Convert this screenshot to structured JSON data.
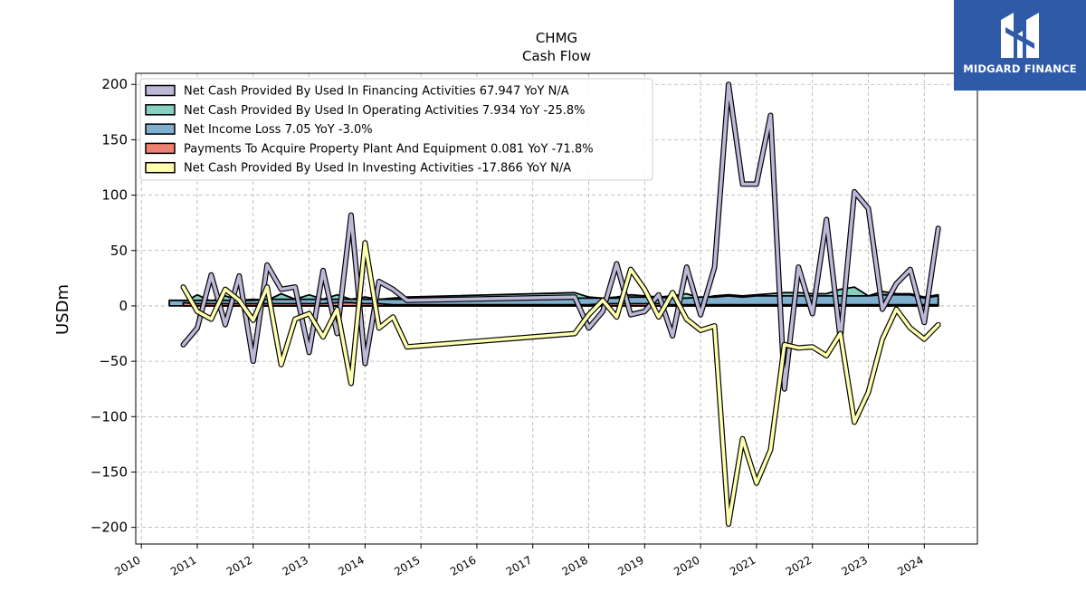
{
  "brand": {
    "name": "MIDGARD FINANCE",
    "bg_color": "#2f5aa8"
  },
  "chart_data": {
    "type": "area",
    "title": "CHMG",
    "subtitle": "Cash Flow",
    "xlabel": "",
    "ylabel": "USDm",
    "xlim": [
      2009.9,
      2024.95
    ],
    "ylim": [
      -215,
      210
    ],
    "yticks": [
      200,
      150,
      100,
      50,
      0,
      -50,
      -100,
      -150,
      -200
    ],
    "ytick_labels": [
      "200",
      "150",
      "100",
      "50",
      "0",
      "−50",
      "−100",
      "−150",
      "−200"
    ],
    "xticks": [
      2010,
      2011,
      2012,
      2013,
      2014,
      2015,
      2016,
      2017,
      2018,
      2019,
      2020,
      2021,
      2022,
      2023,
      2024
    ],
    "xtick_labels": [
      "2010",
      "2011",
      "2012",
      "2013",
      "2014",
      "2015",
      "2016",
      "2017",
      "2018",
      "2019",
      "2020",
      "2021",
      "2022",
      "2023",
      "2024"
    ],
    "grid": true,
    "legend_position": "top-left",
    "series": [
      {
        "name": "Net Cash Provided By Used In Financing Activities",
        "legend": "Net Cash Provided By Used In Financing Activities  67.947 YoY N/A",
        "style": "line",
        "color": "#bcb8d8",
        "x": [
          2010.75,
          2011.0,
          2011.25,
          2011.5,
          2011.75,
          2012.0,
          2012.25,
          2012.5,
          2012.75,
          2013.0,
          2013.25,
          2013.5,
          2013.75,
          2014.0,
          2014.25,
          2014.5,
          2014.75,
          2017.75,
          2018.0,
          2018.25,
          2018.5,
          2018.75,
          2019.0,
          2019.25,
          2019.5,
          2019.75,
          2020.0,
          2020.25,
          2020.5,
          2020.75,
          2021.0,
          2021.25,
          2021.5,
          2021.75,
          2022.0,
          2022.25,
          2022.5,
          2022.75,
          2023.0,
          2023.25,
          2023.5,
          2023.75,
          2024.0,
          2024.25
        ],
        "y": [
          -35,
          -20,
          28,
          -17,
          27,
          -50,
          37,
          15,
          17,
          -42,
          32,
          -25,
          82,
          -52,
          22,
          15,
          5,
          8,
          -20,
          -5,
          38,
          -8,
          -5,
          10,
          -27,
          35,
          -8,
          35,
          200,
          110,
          110,
          172,
          -75,
          35,
          -7,
          78,
          -30,
          103,
          88,
          -3,
          20,
          33,
          -15,
          70
        ]
      },
      {
        "name": "Net Cash Provided By Used In Operating Activities",
        "legend": "Net Cash Provided By Used In Operating Activities  7.934 YoY -25.8%",
        "style": "area",
        "color": "#88d0c0",
        "x": [
          2010.75,
          2011.0,
          2011.25,
          2011.5,
          2011.75,
          2012.0,
          2012.25,
          2012.5,
          2012.75,
          2013.0,
          2013.25,
          2013.5,
          2013.75,
          2014.0,
          2014.25,
          2014.5,
          2014.75,
          2017.75,
          2018.0,
          2018.25,
          2018.5,
          2018.75,
          2019.0,
          2019.25,
          2019.5,
          2019.75,
          2020.0,
          2020.25,
          2020.5,
          2020.75,
          2021.0,
          2021.25,
          2021.5,
          2021.75,
          2022.0,
          2022.25,
          2022.5,
          2022.75,
          2023.0,
          2023.25,
          2023.5,
          2023.75,
          2024.0,
          2024.25
        ],
        "y": [
          3,
          10,
          4,
          9,
          5,
          6,
          5,
          11,
          6,
          10,
          6,
          10,
          6,
          8,
          6,
          7,
          8,
          12,
          8,
          7,
          8,
          10,
          9,
          8,
          9,
          11,
          7,
          9,
          10,
          9,
          10,
          11,
          12,
          12,
          11,
          11,
          15,
          17,
          9,
          13,
          11,
          11,
          8,
          10
        ]
      },
      {
        "name": "Net Income Loss",
        "legend": "Net Income Loss  7.05 YoY -3.0%",
        "style": "area",
        "color": "#7fb0d0",
        "x": [
          2010.5,
          2010.75,
          2011.0,
          2011.25,
          2011.5,
          2011.75,
          2012.0,
          2012.25,
          2012.5,
          2012.75,
          2013.0,
          2013.25,
          2013.5,
          2013.75,
          2014.0,
          2014.25,
          2014.5,
          2014.75,
          2017.75,
          2018.0,
          2018.25,
          2018.5,
          2018.75,
          2019.0,
          2019.25,
          2019.5,
          2019.75,
          2020.0,
          2020.25,
          2020.5,
          2020.75,
          2021.0,
          2021.25,
          2021.5,
          2021.75,
          2022.0,
          2022.25,
          2022.5,
          2022.75,
          2023.0,
          2023.25,
          2023.5,
          2023.75,
          2024.0,
          2024.25
        ],
        "y": [
          5,
          5,
          5,
          5,
          5,
          5,
          5,
          6,
          6,
          6,
          6,
          6,
          6,
          6,
          6,
          6,
          6,
          6,
          7,
          7,
          7,
          7,
          8,
          8,
          8,
          7,
          7,
          8,
          8,
          9,
          8,
          9,
          9,
          9,
          9,
          9,
          9,
          9,
          9,
          9,
          10,
          10,
          10,
          7,
          9
        ]
      },
      {
        "name": "Payments To Acquire Property Plant And Equipment",
        "legend": "Payments To Acquire Property Plant And Equipment  0.081 YoY -71.8%",
        "style": "area",
        "color": "#f08070",
        "x": [
          2010.75,
          2011.0,
          2011.25,
          2011.5,
          2011.75,
          2012.0,
          2012.25,
          2012.5,
          2012.75,
          2013.0,
          2013.25,
          2013.5,
          2013.75,
          2014.0,
          2014.25,
          2014.5,
          2014.75,
          2017.75,
          2018.0,
          2018.25,
          2018.5,
          2018.75,
          2019.0,
          2019.25,
          2019.5,
          2019.75,
          2020.0,
          2020.25,
          2020.5,
          2020.75,
          2021.0,
          2021.25,
          2021.5,
          2021.75,
          2022.0,
          2022.25,
          2022.5,
          2022.75,
          2023.0,
          2023.25,
          2023.5,
          2023.75,
          2024.0,
          2024.25
        ],
        "y": [
          3,
          2,
          2,
          2,
          2,
          2,
          2,
          2,
          2,
          2,
          2,
          3,
          3,
          2,
          2,
          1,
          1,
          1,
          1,
          2,
          2,
          2,
          2,
          2,
          1,
          1,
          1,
          1,
          1,
          1,
          1,
          1,
          1,
          1,
          1,
          1,
          1,
          1,
          1,
          1,
          1,
          1,
          1,
          1
        ]
      },
      {
        "name": "Net Cash Provided By Used In Investing Activities",
        "legend": "Net Cash Provided By Used In Investing Activities  -17.866 YoY N/A",
        "style": "line",
        "color": "#ffffb0",
        "x": [
          2010.75,
          2011.0,
          2011.25,
          2011.5,
          2011.75,
          2012.0,
          2012.25,
          2012.5,
          2012.75,
          2013.0,
          2013.25,
          2013.5,
          2013.75,
          2014.0,
          2014.25,
          2014.5,
          2014.75,
          2017.75,
          2018.0,
          2018.25,
          2018.5,
          2018.75,
          2019.0,
          2019.25,
          2019.5,
          2019.75,
          2020.0,
          2020.25,
          2020.5,
          2020.75,
          2021.0,
          2021.25,
          2021.5,
          2021.75,
          2022.0,
          2022.25,
          2022.5,
          2022.75,
          2023.0,
          2023.25,
          2023.5,
          2023.75,
          2024.0,
          2024.25
        ],
        "y": [
          17,
          -5,
          -12,
          15,
          5,
          -13,
          17,
          -53,
          -12,
          -7,
          -28,
          -3,
          -70,
          57,
          -20,
          -10,
          -37,
          -25,
          -8,
          5,
          -10,
          33,
          15,
          -10,
          12,
          -12,
          -22,
          -18,
          -197,
          -120,
          -160,
          -130,
          -35,
          -38,
          -37,
          -45,
          -25,
          -105,
          -78,
          -30,
          -3,
          -20,
          -30,
          -17
        ]
      }
    ]
  }
}
